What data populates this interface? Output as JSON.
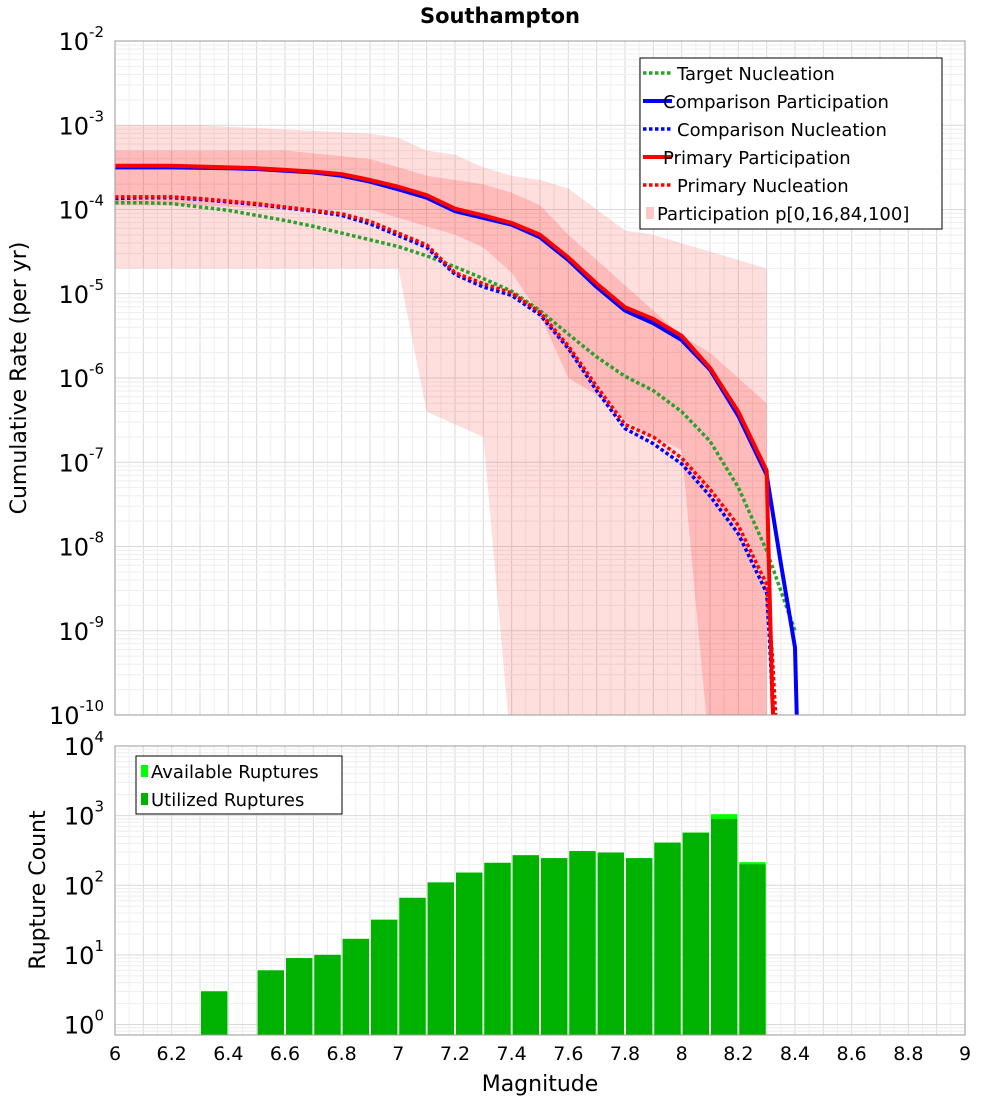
{
  "chart_data": [
    {
      "type": "line",
      "title": "Southampton",
      "xlabel": "",
      "ylabel": "Cumulative Rate (per yr)",
      "xlim": [
        6,
        9
      ],
      "ylim_log10": [
        -10,
        -2
      ],
      "yscale": "log",
      "ytick_labels": [
        {
          "base": "10",
          "exp": "-2"
        },
        {
          "base": "10",
          "exp": "-3"
        },
        {
          "base": "10",
          "exp": "-4"
        },
        {
          "base": "10",
          "exp": "-5"
        },
        {
          "base": "10",
          "exp": "-6"
        },
        {
          "base": "10",
          "exp": "-7"
        },
        {
          "base": "10",
          "exp": "-8"
        },
        {
          "base": "10",
          "exp": "-9"
        },
        {
          "base": "10",
          "exp": "-10"
        }
      ],
      "legend": [
        {
          "label": "Target Nucleation",
          "color": "#2ca02c",
          "style": "dotted"
        },
        {
          "label": "Comparison Participation",
          "color": "#0000ff",
          "style": "solid"
        },
        {
          "label": "Comparison Nucleation",
          "color": "#0000ff",
          "style": "dotted"
        },
        {
          "label": "Primary Participation",
          "color": "#ff0000",
          "style": "solid"
        },
        {
          "label": "Primary Nucleation",
          "color": "#ff0000",
          "style": "dotted"
        },
        {
          "label": "Participation p[0,16,84,100]",
          "color": "#ffc8c8",
          "style": "box"
        }
      ],
      "bands": {
        "color": "#ff0000",
        "outer": {
          "x": [
            6.0,
            6.3,
            6.6,
            6.9,
            7.0,
            7.1,
            7.2,
            7.3,
            7.4,
            7.5,
            7.6,
            7.7,
            7.8,
            7.9,
            8.0,
            8.1,
            8.2,
            8.3
          ],
          "lower": [
            -4.7,
            -4.7,
            -4.7,
            -4.7,
            -4.7,
            -6.4,
            -6.55,
            -6.7,
            -10.5,
            -10.5,
            -10.5,
            -10.5,
            -10.5,
            -10.5,
            -10.5,
            -10.5,
            -10.5,
            -10.5
          ],
          "upper": [
            -3.0,
            -3.0,
            -3.05,
            -3.1,
            -3.15,
            -3.3,
            -3.35,
            -3.5,
            -3.6,
            -3.65,
            -3.75,
            -4.0,
            -4.25,
            -4.3,
            -4.4,
            -4.5,
            -4.6,
            -4.7
          ]
        },
        "inner": {
          "x": [
            6.0,
            6.3,
            6.6,
            6.9,
            7.0,
            7.1,
            7.2,
            7.3,
            7.4,
            7.5,
            7.6,
            7.7,
            7.8,
            7.9,
            8.0,
            8.1,
            8.2,
            8.3
          ],
          "lower": [
            -3.95,
            -3.95,
            -4.0,
            -4.0,
            -4.1,
            -4.2,
            -4.3,
            -4.45,
            -4.75,
            -5.25,
            -6.0,
            -6.2,
            -6.5,
            -6.7,
            -6.85,
            -10.5,
            -10.5,
            -10.5
          ],
          "upper": [
            -3.3,
            -3.3,
            -3.3,
            -3.4,
            -3.5,
            -3.6,
            -3.65,
            -3.7,
            -3.8,
            -3.95,
            -4.3,
            -4.6,
            -4.9,
            -5.2,
            -5.5,
            -5.7,
            -6.0,
            -6.3
          ]
        }
      },
      "series": [
        {
          "name": "Participation p[0,16,84,100]",
          "color": "#ffc8c8",
          "style": "band",
          "x": [],
          "log10_y": []
        },
        {
          "name": "Target Nucleation",
          "color": "#2ca02c",
          "style": "dotted",
          "x": [
            6.0,
            6.1,
            6.2,
            6.3,
            6.4,
            6.5,
            6.6,
            6.7,
            6.8,
            6.9,
            7.0,
            7.1,
            7.2,
            7.3,
            7.4,
            7.5,
            7.6,
            7.7,
            7.8,
            7.9,
            8.0,
            8.1,
            8.2,
            8.3,
            8.4
          ],
          "log10_y": [
            -3.92,
            -3.92,
            -3.93,
            -3.97,
            -4.01,
            -4.07,
            -4.13,
            -4.2,
            -4.28,
            -4.36,
            -4.44,
            -4.55,
            -4.68,
            -4.82,
            -4.97,
            -5.2,
            -5.48,
            -5.75,
            -5.98,
            -6.15,
            -6.4,
            -6.75,
            -7.3,
            -8.05,
            -9.0
          ]
        },
        {
          "name": "Comparison Participation",
          "color": "#0000ff",
          "style": "solid",
          "x": [
            6.0,
            6.2,
            6.4,
            6.5,
            6.6,
            6.7,
            6.8,
            6.9,
            7.0,
            7.1,
            7.2,
            7.3,
            7.4,
            7.5,
            7.6,
            7.7,
            7.8,
            7.9,
            8.0,
            8.1,
            8.2,
            8.3,
            8.35,
            8.4,
            8.41
          ],
          "log10_y": [
            -3.5,
            -3.5,
            -3.51,
            -3.52,
            -3.54,
            -3.56,
            -3.6,
            -3.67,
            -3.76,
            -3.86,
            -4.02,
            -4.1,
            -4.18,
            -4.33,
            -4.6,
            -4.92,
            -5.2,
            -5.35,
            -5.55,
            -5.9,
            -6.45,
            -7.15,
            -8.2,
            -9.2,
            -10.5
          ]
        },
        {
          "name": "Comparison Nucleation",
          "color": "#0000ff",
          "style": "dotted",
          "x": [
            6.0,
            6.1,
            6.2,
            6.3,
            6.4,
            6.5,
            6.6,
            6.7,
            6.8,
            6.9,
            7.0,
            7.1,
            7.2,
            7.3,
            7.4,
            7.5,
            7.6,
            7.7,
            7.8,
            7.9,
            8.0,
            8.1,
            8.2,
            8.3,
            8.31,
            8.33
          ],
          "log10_y": [
            -3.87,
            -3.86,
            -3.86,
            -3.88,
            -3.91,
            -3.94,
            -3.98,
            -4.02,
            -4.07,
            -4.17,
            -4.31,
            -4.45,
            -4.77,
            -4.92,
            -5.02,
            -5.25,
            -5.65,
            -6.15,
            -6.6,
            -6.78,
            -7.02,
            -7.4,
            -7.85,
            -8.55,
            -9.1,
            -10.5
          ]
        },
        {
          "name": "Primary Participation",
          "color": "#ff0000",
          "style": "solid",
          "x": [
            6.0,
            6.2,
            6.4,
            6.5,
            6.6,
            6.7,
            6.8,
            6.9,
            7.0,
            7.1,
            7.2,
            7.3,
            7.4,
            7.5,
            7.6,
            7.7,
            7.8,
            7.9,
            8.0,
            8.1,
            8.2,
            8.3,
            8.31,
            8.32,
            8.33
          ],
          "log10_y": [
            -3.48,
            -3.48,
            -3.5,
            -3.51,
            -3.53,
            -3.55,
            -3.58,
            -3.65,
            -3.73,
            -3.83,
            -3.99,
            -4.07,
            -4.16,
            -4.3,
            -4.57,
            -4.88,
            -5.16,
            -5.3,
            -5.5,
            -5.88,
            -6.4,
            -7.1,
            -8.5,
            -9.8,
            -10.5
          ]
        },
        {
          "name": "Primary Nucleation",
          "color": "#ff0000",
          "style": "dotted",
          "x": [
            6.0,
            6.1,
            6.2,
            6.3,
            6.4,
            6.5,
            6.6,
            6.7,
            6.8,
            6.9,
            7.0,
            7.1,
            7.2,
            7.3,
            7.4,
            7.5,
            7.6,
            7.7,
            7.8,
            7.9,
            8.0,
            8.1,
            8.2,
            8.3,
            8.32,
            8.34
          ],
          "log10_y": [
            -3.85,
            -3.85,
            -3.85,
            -3.87,
            -3.9,
            -3.93,
            -3.97,
            -4.01,
            -4.05,
            -4.14,
            -4.28,
            -4.42,
            -4.75,
            -4.88,
            -4.99,
            -5.22,
            -5.62,
            -6.1,
            -6.55,
            -6.7,
            -6.95,
            -7.32,
            -7.75,
            -8.45,
            -9.3,
            -10.5
          ]
        }
      ]
    },
    {
      "type": "bar",
      "xlabel": "Magnitude",
      "ylabel": "Rupture Count",
      "xlim": [
        6,
        9
      ],
      "ylim_log10": [
        -0.15,
        4
      ],
      "yscale": "log",
      "ytick_labels": [
        {
          "base": "10",
          "exp": "4"
        },
        {
          "base": "10",
          "exp": "3"
        },
        {
          "base": "10",
          "exp": "2"
        },
        {
          "base": "10",
          "exp": "1"
        },
        {
          "base": "10",
          "exp": "0"
        }
      ],
      "xtick_labels": [
        "6",
        "6.2",
        "6.4",
        "6.6",
        "6.8",
        "7",
        "7.2",
        "7.4",
        "7.6",
        "7.8",
        "8",
        "8.2",
        "8.4",
        "8.6",
        "8.8",
        "9"
      ],
      "legend": [
        {
          "label": "Available Ruptures",
          "color": "#00ff00"
        },
        {
          "label": "Utilized Ruptures",
          "color": "#00b200"
        }
      ],
      "bin_width": 0.1,
      "categories": [
        6.05,
        6.15,
        6.25,
        6.35,
        6.45,
        6.55,
        6.65,
        6.75,
        6.85,
        6.95,
        7.05,
        7.15,
        7.25,
        7.35,
        7.45,
        7.55,
        7.65,
        7.75,
        7.85,
        7.95,
        8.05,
        8.15,
        8.25,
        8.35
      ],
      "series": [
        {
          "name": "Available Ruptures",
          "color": "#00ff00",
          "values": [
            0,
            0,
            0,
            3,
            0,
            6,
            9,
            10,
            17,
            32,
            66,
            110,
            152,
            210,
            270,
            245,
            310,
            295,
            245,
            410,
            570,
            1050,
            215,
            0
          ]
        },
        {
          "name": "Utilized Ruptures",
          "color": "#00b200",
          "values": [
            0,
            0,
            0,
            3,
            0,
            6,
            9,
            10,
            17,
            32,
            66,
            110,
            152,
            210,
            270,
            245,
            310,
            295,
            245,
            410,
            570,
            900,
            200,
            0
          ]
        }
      ]
    }
  ]
}
